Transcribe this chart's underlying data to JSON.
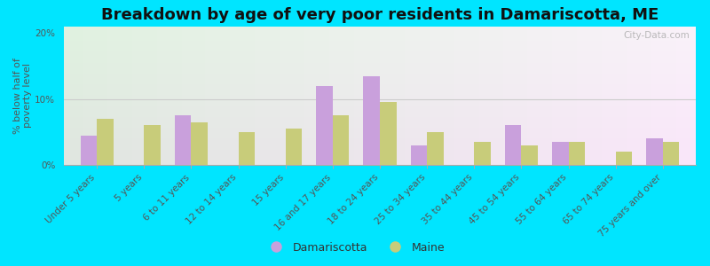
{
  "title": "Breakdown by age of very poor residents in Damariscotta, ME",
  "ylabel": "% below half of\npoverty level",
  "categories": [
    "Under 5 years",
    "5 years",
    "6 to 11 years",
    "12 to 14 years",
    "15 years",
    "16 and 17 years",
    "18 to 24 years",
    "25 to 34 years",
    "35 to 44 years",
    "45 to 54 years",
    "55 to 64 years",
    "65 to 74 years",
    "75 years and over"
  ],
  "damariscotta": [
    4.5,
    0,
    7.5,
    0,
    0,
    12.0,
    13.5,
    3.0,
    0,
    6.0,
    3.5,
    0,
    4.0
  ],
  "maine": [
    7.0,
    6.0,
    6.5,
    5.0,
    5.5,
    7.5,
    9.5,
    5.0,
    3.5,
    3.0,
    3.5,
    2.0,
    3.5
  ],
  "damariscotta_color": "#c9a0dc",
  "maine_color": "#c8cc7a",
  "background_outer": "#00e5ff",
  "ylim": [
    0,
    21
  ],
  "yticks": [
    0,
    10,
    20
  ],
  "ytick_labels": [
    "0%",
    "10%",
    "20%"
  ],
  "bar_width": 0.35,
  "title_fontsize": 13,
  "axis_fontsize": 8,
  "tick_fontsize": 7.5,
  "legend_fontsize": 9,
  "watermark": "City-Data.com"
}
